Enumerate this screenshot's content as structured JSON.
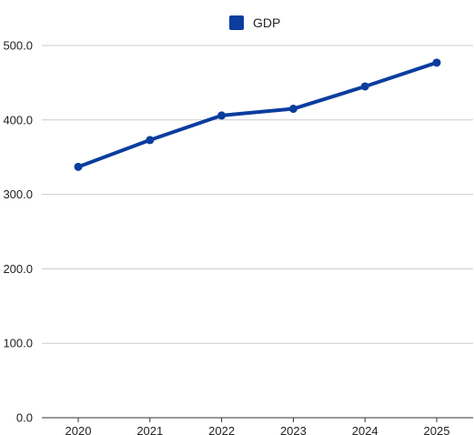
{
  "chart_data": {
    "type": "line",
    "categories": [
      "2020",
      "2021",
      "2022",
      "2023",
      "2024",
      "2025"
    ],
    "series": [
      {
        "name": "GDP",
        "values": [
          337,
          373,
          406,
          415,
          445,
          477
        ],
        "color": "#0a3d9e"
      }
    ],
    "y_ticks": [
      "0.0",
      "100.0",
      "200.0",
      "300.0",
      "400.0",
      "500.0"
    ],
    "ylim": [
      0,
      500
    ],
    "grid": true,
    "legend": {
      "position": "top-center",
      "label": "GDP",
      "color": "#0a3d9e"
    }
  }
}
